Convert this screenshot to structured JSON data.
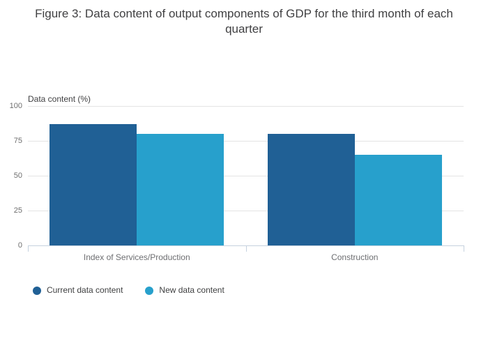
{
  "title": "Figure 3: Data content of output components of GDP for the third month of each quarter",
  "chart_data": {
    "type": "bar",
    "title": "Figure 3: Data content of output components of GDP for the third month of each quarter",
    "axis_title": "Data content (%)",
    "xlabel": "",
    "ylabel": "Data content (%)",
    "categories": [
      "Index of Services/Production",
      "Construction"
    ],
    "series": [
      {
        "name": "Current data content",
        "color": "#206095",
        "values": [
          87,
          80
        ]
      },
      {
        "name": "New data content",
        "color": "#27a0cc",
        "values": [
          80,
          65
        ]
      }
    ],
    "ylim": [
      0,
      100
    ],
    "yticks": [
      0,
      25,
      50,
      75,
      100
    ],
    "grid": true,
    "legend_position": "bottom-left",
    "colors": {
      "background": "#ffffff",
      "gridline": "#e4e4e4",
      "axis_line": "#c5d1de",
      "title_text": "#404042",
      "tick_text": "#6e6e6e",
      "category_text": "#6d6e71"
    }
  }
}
